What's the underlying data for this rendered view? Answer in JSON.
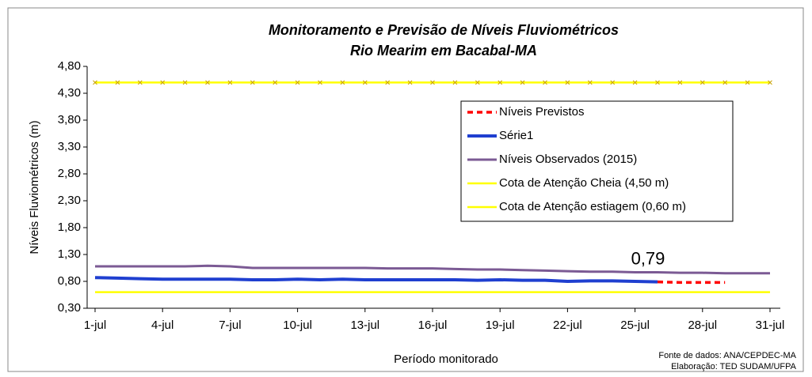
{
  "chart_data": {
    "type": "line",
    "title": "Monitoramento e Previsão de Níveis Fluviométricos",
    "subtitle": "Rio Mearim em Bacabal-MA",
    "y_label": "Níveis Fluviométricos (m)",
    "x_label": "Período monitorado",
    "notes": [
      "Fonte de dados: ANA/CEPDEC-MA",
      "Elaboração: TED SUDAM/UFPA"
    ],
    "categories": [
      "1-jul",
      null,
      null,
      "4-jul",
      null,
      null,
      "7-jul",
      null,
      null,
      "10-jul",
      null,
      null,
      "13-jul",
      null,
      null,
      "16-jul",
      null,
      null,
      "19-jul",
      null,
      null,
      "22-jul",
      null,
      null,
      "25-jul",
      null,
      null,
      "28-jul",
      null,
      null,
      "31-jul"
    ],
    "ylim": [
      0.3,
      4.8
    ],
    "yticks": [
      {
        "value": 0.3,
        "label": "0,30"
      },
      {
        "value": 0.8,
        "label": "0,80"
      },
      {
        "value": 1.3,
        "label": "1,30"
      },
      {
        "value": 1.8,
        "label": "1,80"
      },
      {
        "value": 2.3,
        "label": "2,30"
      },
      {
        "value": 2.8,
        "label": "2,80"
      },
      {
        "value": 3.3,
        "label": "3,30"
      },
      {
        "value": 3.8,
        "label": "3,80"
      },
      {
        "value": 4.3,
        "label": "4,30"
      },
      {
        "value": 4.8,
        "label": "4,80"
      }
    ],
    "grid": false,
    "legend": "upper right",
    "series": [
      {
        "name": "Níveis Previstos",
        "color": "#ff0000",
        "dash": true,
        "values": [
          null,
          null,
          null,
          null,
          null,
          null,
          null,
          null,
          null,
          null,
          null,
          null,
          null,
          null,
          null,
          null,
          null,
          null,
          null,
          null,
          null,
          null,
          null,
          null,
          null,
          0.79,
          0.78,
          0.78,
          0.78,
          null,
          null
        ],
        "value_labels": [
          null,
          null,
          null,
          null,
          null,
          null,
          null,
          null,
          null,
          null,
          null,
          null,
          null,
          null,
          null,
          null,
          null,
          null,
          null,
          null,
          null,
          null,
          null,
          null,
          null,
          "0,79",
          null,
          null,
          null,
          null,
          null
        ]
      },
      {
        "name": "Série1",
        "color": "#1f3fd0",
        "values": [
          0.87,
          0.86,
          0.85,
          0.84,
          0.84,
          0.84,
          0.84,
          0.83,
          0.83,
          0.84,
          0.83,
          0.84,
          0.83,
          0.83,
          0.83,
          0.83,
          0.83,
          0.82,
          0.83,
          0.82,
          0.82,
          0.8,
          0.81,
          0.81,
          0.8,
          0.79,
          null,
          null,
          null,
          null,
          null
        ]
      },
      {
        "name": "Níveis Observados (2015)",
        "color": "#7b5a94",
        "values": [
          1.08,
          1.08,
          1.08,
          1.08,
          1.08,
          1.09,
          1.08,
          1.05,
          1.05,
          1.05,
          1.05,
          1.05,
          1.05,
          1.04,
          1.04,
          1.04,
          1.03,
          1.02,
          1.02,
          1.01,
          1.0,
          0.99,
          0.98,
          0.98,
          0.97,
          0.97,
          0.96,
          0.96,
          0.95,
          0.95,
          0.95
        ]
      },
      {
        "name": "Cota de Atenção Cheia (4,50 m)",
        "color": "#ffff00",
        "marker": "x",
        "values": [
          4.5,
          4.5,
          4.5,
          4.5,
          4.5,
          4.5,
          4.5,
          4.5,
          4.5,
          4.5,
          4.5,
          4.5,
          4.5,
          4.5,
          4.5,
          4.5,
          4.5,
          4.5,
          4.5,
          4.5,
          4.5,
          4.5,
          4.5,
          4.5,
          4.5,
          4.5,
          4.5,
          4.5,
          4.5,
          4.5,
          4.5
        ]
      },
      {
        "name": "Cota de Atenção estiagem (0,60 m)",
        "color": "#ffff00",
        "values": [
          0.6,
          0.6,
          0.6,
          0.6,
          0.6,
          0.6,
          0.6,
          0.6,
          0.6,
          0.6,
          0.6,
          0.6,
          0.6,
          0.6,
          0.6,
          0.6,
          0.6,
          0.6,
          0.6,
          0.6,
          0.6,
          0.6,
          0.6,
          0.6,
          0.6,
          0.6,
          0.6,
          0.6,
          0.6,
          0.6,
          0.6
        ]
      }
    ]
  }
}
